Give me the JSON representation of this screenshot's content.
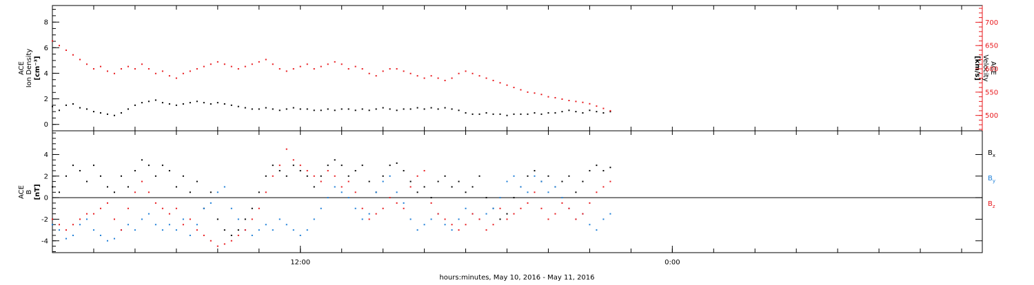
{
  "chart_data": [
    {
      "type": "scatter",
      "panel": "top",
      "left_axis": {
        "label_lines": [
          "ACE",
          "Ion Density",
          "[cm⁻³]"
        ],
        "ticks": [
          0,
          2,
          4,
          6,
          8
        ],
        "ylim": [
          -0.5,
          9.3
        ],
        "color": "#000000"
      },
      "right_axis": {
        "label_lines": [
          "ACE",
          "Velocity",
          "[km/s]"
        ],
        "ticks": [
          500,
          550,
          600,
          650,
          700
        ],
        "ylim": [
          467,
          736
        ],
        "color": "#e8171b"
      },
      "series": [
        {
          "axis": "left",
          "color": "#000000",
          "x": [
            0.0,
            1.0,
            2.0,
            3.0,
            4.0,
            5.0,
            6.0,
            7.0,
            8.0,
            9.0,
            10.0,
            11.0,
            12.0,
            13.0,
            14.0,
            15.0,
            16.0,
            17.0,
            18.0,
            19.0,
            20.0,
            21.0,
            22.0,
            23.0,
            24.0,
            25.0,
            26.0,
            27.0,
            28.0,
            29.0,
            30.0,
            31.0,
            32.0,
            33.0,
            34.0,
            35.0,
            36.0,
            37.0,
            38.0,
            39.0,
            40.0,
            41.0,
            42.0,
            43.0,
            44.0,
            45.0,
            46.0,
            47.0,
            48.0,
            49.0,
            50.0,
            51.0,
            52.0,
            53.0,
            54.0,
            55.0,
            56.0,
            57.0,
            58.0,
            59.0,
            60.0,
            61.0,
            62.0,
            63.0,
            64.0,
            65.0,
            66.0,
            67.0,
            68.0,
            69.0,
            70.0,
            71.0,
            72.0,
            73.0,
            74.0,
            75.0,
            76.0,
            77.0,
            78.0,
            79.0,
            80.0,
            81.0
          ],
          "y": [
            1.4,
            1.1,
            1.5,
            1.6,
            1.3,
            1.2,
            1.0,
            0.9,
            0.8,
            0.7,
            0.9,
            1.2,
            1.5,
            1.7,
            1.8,
            1.9,
            1.7,
            1.6,
            1.5,
            1.6,
            1.7,
            1.8,
            1.7,
            1.6,
            1.7,
            1.6,
            1.5,
            1.4,
            1.3,
            1.2,
            1.2,
            1.3,
            1.2,
            1.1,
            1.2,
            1.3,
            1.2,
            1.2,
            1.1,
            1.1,
            1.2,
            1.1,
            1.2,
            1.2,
            1.1,
            1.2,
            1.1,
            1.2,
            1.3,
            1.2,
            1.1,
            1.2,
            1.2,
            1.3,
            1.2,
            1.3,
            1.2,
            1.3,
            1.2,
            1.1,
            0.9,
            0.8,
            0.8,
            0.9,
            0.8,
            0.8,
            0.7,
            0.8,
            0.8,
            0.8,
            0.9,
            0.8,
            0.9,
            0.9,
            1.0,
            1.1,
            1.0,
            0.9,
            1.1,
            1.0,
            0.9,
            1.0
          ]
        },
        {
          "axis": "right",
          "color": "#e8171b",
          "x": [
            0.0,
            1.0,
            2.0,
            3.0,
            4.0,
            5.0,
            6.0,
            7.0,
            8.0,
            9.0,
            10.0,
            11.0,
            12.0,
            13.0,
            14.0,
            15.0,
            16.0,
            17.0,
            18.0,
            19.0,
            20.0,
            21.0,
            22.0,
            23.0,
            24.0,
            25.0,
            26.0,
            27.0,
            28.0,
            29.0,
            30.0,
            31.0,
            32.0,
            33.0,
            34.0,
            35.0,
            36.0,
            37.0,
            38.0,
            39.0,
            40.0,
            41.0,
            42.0,
            43.0,
            44.0,
            45.0,
            46.0,
            47.0,
            48.0,
            49.0,
            50.0,
            51.0,
            52.0,
            53.0,
            54.0,
            55.0,
            56.0,
            57.0,
            58.0,
            59.0,
            60.0,
            61.0,
            62.0,
            63.0,
            64.0,
            65.0,
            66.0,
            67.0,
            68.0,
            69.0,
            70.0,
            71.0,
            72.0,
            73.0,
            74.0,
            75.0,
            76.0,
            77.0,
            78.0,
            79.0,
            80.0,
            81.0
          ],
          "y": [
            660,
            650,
            640,
            630,
            620,
            610,
            600,
            605,
            595,
            590,
            600,
            605,
            600,
            610,
            600,
            590,
            595,
            585,
            580,
            590,
            595,
            600,
            605,
            610,
            615,
            610,
            605,
            600,
            605,
            610,
            615,
            620,
            610,
            600,
            595,
            600,
            605,
            610,
            600,
            605,
            610,
            615,
            610,
            600,
            605,
            600,
            590,
            585,
            595,
            600,
            600,
            595,
            590,
            585,
            580,
            585,
            580,
            575,
            580,
            590,
            595,
            590,
            585,
            580,
            575,
            570,
            565,
            560,
            555,
            550,
            548,
            545,
            540,
            538,
            535,
            532,
            530,
            528,
            525,
            520,
            515,
            510
          ]
        }
      ]
    },
    {
      "type": "scatter",
      "panel": "bottom",
      "left_axis": {
        "label_lines": [
          "ACE",
          "B",
          "[nT]"
        ],
        "ticks": [
          -4,
          -2,
          0,
          2,
          4
        ],
        "ylim": [
          -5.1,
          6.2
        ],
        "color": "#000000"
      },
      "zero_line": true,
      "legend_position": "right",
      "series": [
        {
          "name": "Bx",
          "color": "#000000",
          "x": [
            0.0,
            1.0,
            2.0,
            3.0,
            4.0,
            5.0,
            6.0,
            7.0,
            8.0,
            9.0,
            10.0,
            11.0,
            12.0,
            13.0,
            14.0,
            15.0,
            16.0,
            17.0,
            18.0,
            19.0,
            20.0,
            21.0,
            22.0,
            23.0,
            24.0,
            25.0,
            26.0,
            27.0,
            28.0,
            29.0,
            30.0,
            31.0,
            32.0,
            33.0,
            34.0,
            35.0,
            36.0,
            37.0,
            38.0,
            39.0,
            40.0,
            41.0,
            42.0,
            43.0,
            44.0,
            45.0,
            46.0,
            47.0,
            48.0,
            49.0,
            50.0,
            51.0,
            52.0,
            53.0,
            54.0,
            55.0,
            56.0,
            57.0,
            58.0,
            59.0,
            60.0,
            61.0,
            62.0,
            63.0,
            64.0,
            65.0,
            66.0,
            67.0,
            68.0,
            69.0,
            70.0,
            71.0,
            72.0,
            73.0,
            74.0,
            75.0,
            76.0,
            77.0,
            78.0,
            79.0,
            80.0,
            81.0
          ],
          "y": [
            1.0,
            0.5,
            2.0,
            3.0,
            2.5,
            1.5,
            3.0,
            2.0,
            1.0,
            0.5,
            2.0,
            1.0,
            2.5,
            3.5,
            3.0,
            2.0,
            3.0,
            2.5,
            1.0,
            2.0,
            0.5,
            1.5,
            -1.0,
            0.5,
            -2.0,
            -3.0,
            -3.5,
            -3.0,
            -2.0,
            -1.0,
            0.5,
            2.0,
            3.0,
            2.5,
            2.0,
            3.0,
            2.5,
            2.0,
            1.0,
            2.0,
            3.0,
            3.5,
            3.0,
            2.0,
            2.5,
            3.0,
            1.5,
            0.5,
            2.0,
            3.0,
            3.2,
            2.5,
            1.5,
            0.5,
            1.0,
            0.0,
            1.5,
            2.0,
            1.0,
            1.5,
            0.5,
            1.0,
            2.0,
            0.0,
            -1.0,
            -2.0,
            -1.5,
            0.0,
            1.0,
            2.0,
            2.5,
            1.5,
            2.0,
            1.0,
            1.5,
            2.0,
            0.5,
            1.5,
            2.5,
            3.0,
            2.5,
            2.8
          ]
        },
        {
          "name": "By",
          "color": "#1a7dd7",
          "x": [
            0.0,
            1.0,
            2.0,
            3.0,
            4.0,
            5.0,
            6.0,
            7.0,
            8.0,
            9.0,
            10.0,
            11.0,
            12.0,
            13.0,
            14.0,
            15.0,
            16.0,
            17.0,
            18.0,
            19.0,
            20.0,
            21.0,
            22.0,
            23.0,
            24.0,
            25.0,
            26.0,
            27.0,
            28.0,
            29.0,
            30.0,
            31.0,
            32.0,
            33.0,
            34.0,
            35.0,
            36.0,
            37.0,
            38.0,
            39.0,
            40.0,
            41.0,
            42.0,
            43.0,
            44.0,
            45.0,
            46.0,
            47.0,
            48.0,
            49.0,
            50.0,
            51.0,
            52.0,
            53.0,
            54.0,
            55.0,
            56.0,
            57.0,
            58.0,
            59.0,
            60.0,
            61.0,
            62.0,
            63.0,
            64.0,
            65.0,
            66.0,
            67.0,
            68.0,
            69.0,
            70.0,
            71.0,
            72.0,
            73.0,
            74.0,
            75.0,
            76.0,
            77.0,
            78.0,
            79.0,
            80.0,
            81.0
          ],
          "y": [
            -2.5,
            -3.0,
            -3.8,
            -3.5,
            -2.5,
            -2.0,
            -3.0,
            -3.5,
            -4.0,
            -3.8,
            -3.0,
            -2.5,
            -3.0,
            -2.0,
            -1.5,
            -2.5,
            -3.0,
            -2.5,
            -3.0,
            -2.0,
            -3.5,
            -2.5,
            -1.0,
            -0.5,
            0.5,
            1.0,
            -1.0,
            -2.0,
            -3.0,
            -3.5,
            -3.0,
            -2.5,
            -3.0,
            -2.0,
            -2.5,
            -3.0,
            -3.5,
            -3.0,
            -2.0,
            -1.0,
            0.0,
            1.0,
            0.5,
            0.0,
            -1.0,
            -2.0,
            -1.5,
            0.5,
            1.5,
            2.0,
            0.5,
            -0.5,
            -2.0,
            -3.0,
            -2.5,
            -2.0,
            -1.5,
            -2.5,
            -3.0,
            -2.0,
            -1.0,
            -1.5,
            -2.0,
            -1.5,
            -1.0,
            0.0,
            1.5,
            2.0,
            1.0,
            0.5,
            2.0,
            1.5,
            0.5,
            1.0,
            0.0,
            -1.0,
            -2.0,
            -1.5,
            -2.5,
            -3.0,
            -2.0,
            -1.5
          ]
        },
        {
          "name": "Bz",
          "color": "#e8171b",
          "x": [
            0.0,
            1.0,
            2.0,
            3.0,
            4.0,
            5.0,
            6.0,
            7.0,
            8.0,
            9.0,
            10.0,
            11.0,
            12.0,
            13.0,
            14.0,
            15.0,
            16.0,
            17.0,
            18.0,
            19.0,
            20.0,
            21.0,
            22.0,
            23.0,
            24.0,
            25.0,
            26.0,
            27.0,
            28.0,
            29.0,
            30.0,
            31.0,
            32.0,
            33.0,
            34.0,
            35.0,
            36.0,
            37.0,
            38.0,
            39.0,
            40.0,
            41.0,
            42.0,
            43.0,
            44.0,
            45.0,
            46.0,
            47.0,
            48.0,
            49.0,
            50.0,
            51.0,
            52.0,
            53.0,
            54.0,
            55.0,
            56.0,
            57.0,
            58.0,
            59.0,
            60.0,
            61.0,
            62.0,
            63.0,
            64.0,
            65.0,
            66.0,
            67.0,
            68.0,
            69.0,
            70.0,
            71.0,
            72.0,
            73.0,
            74.0,
            75.0,
            76.0,
            77.0,
            78.0,
            79.0,
            80.0,
            81.0
          ],
          "y": [
            -2.0,
            -2.5,
            -3.0,
            -2.5,
            -2.0,
            -1.5,
            -1.5,
            -1.0,
            -0.5,
            -2.0,
            -3.0,
            -1.0,
            0.5,
            1.5,
            0.5,
            -0.5,
            -1.0,
            -1.5,
            -1.0,
            -2.5,
            -2.0,
            -3.0,
            -3.5,
            -4.0,
            -4.5,
            -4.3,
            -4.0,
            -3.5,
            -3.0,
            -2.0,
            -1.0,
            0.5,
            2.0,
            3.0,
            4.5,
            3.5,
            3.0,
            2.5,
            2.0,
            1.5,
            2.5,
            2.0,
            1.0,
            1.5,
            0.5,
            -1.0,
            -2.0,
            -1.5,
            -1.0,
            0.0,
            -0.5,
            -1.0,
            1.0,
            2.0,
            2.5,
            -0.5,
            -1.5,
            -2.0,
            -2.5,
            -3.0,
            -2.5,
            -1.5,
            -2.0,
            -3.0,
            -2.5,
            -1.0,
            -2.0,
            -1.5,
            -1.0,
            -0.5,
            0.5,
            -1.0,
            -2.0,
            -1.5,
            -0.5,
            -1.0,
            -2.0,
            -1.5,
            -0.5,
            0.5,
            1.0,
            1.5
          ]
        }
      ]
    }
  ],
  "x_axis": {
    "xlim": [
      0,
      135
    ],
    "major_ticks": [
      0,
      6,
      12,
      18,
      24,
      30,
      36,
      42,
      48,
      54,
      60,
      66,
      72,
      78,
      84,
      90,
      96,
      102,
      108,
      114,
      120,
      126,
      132
    ],
    "labeled_ticks": [
      {
        "x": 36,
        "label": "12:00"
      },
      {
        "x": 90,
        "label": "0:00"
      }
    ],
    "title": "hours:minutes, May 10, 2016 - May 11, 2016"
  },
  "legend": {
    "bx": {
      "main": "B",
      "sub": "x",
      "color": "#000000"
    },
    "by": {
      "main": "B",
      "sub": "y",
      "color": "#1a7dd7"
    },
    "bz": {
      "main": "B",
      "sub": "z",
      "color": "#e8171b"
    }
  }
}
